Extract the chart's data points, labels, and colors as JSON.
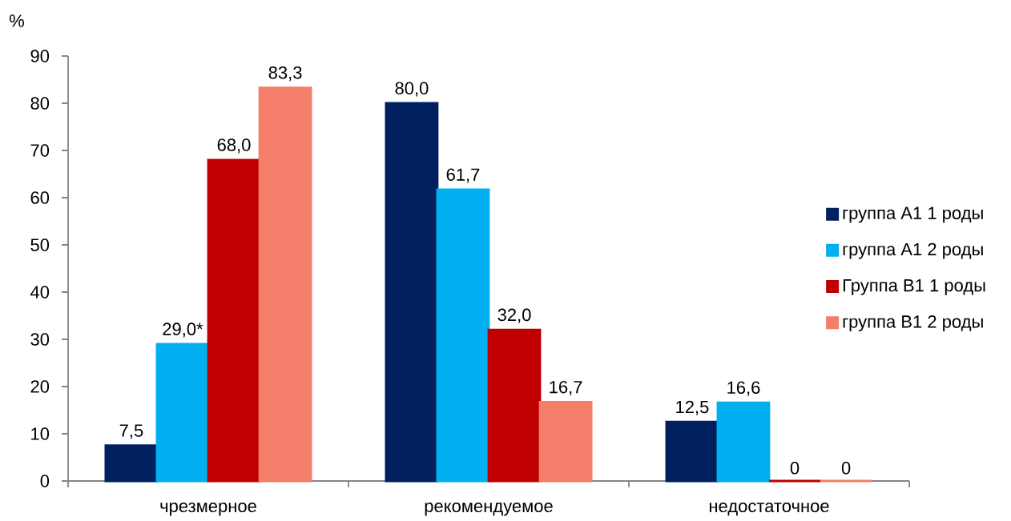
{
  "chart_data": {
    "type": "bar",
    "ylabel": "%",
    "categories": [
      "чрезмерное",
      "рекомендуемое",
      "недостаточное"
    ],
    "series": [
      {
        "name": "группа А1 1 роды",
        "color": "#002060",
        "values": [
          7.5,
          80.0,
          12.5
        ],
        "value_labels": [
          "7,5",
          "80,0",
          "12,5"
        ]
      },
      {
        "name": "группа А1 2 роды",
        "color": "#00b0f0",
        "values": [
          29.0,
          61.7,
          16.6
        ],
        "value_labels": [
          "29,0*",
          "61,7",
          "16,6"
        ]
      },
      {
        "name": "Группа В1 1 роды",
        "color": "#c00000",
        "values": [
          68.0,
          32.0,
          0
        ],
        "value_labels": [
          "68,0",
          "32,0",
          "0"
        ]
      },
      {
        "name": "группа В1 2 роды",
        "color": "#f47e6a",
        "values": [
          83.3,
          16.7,
          0
        ],
        "value_labels": [
          "83,3",
          "16,7",
          "0"
        ]
      }
    ],
    "ylim": [
      0,
      90
    ],
    "yticks": [
      0,
      10,
      20,
      30,
      40,
      50,
      60,
      70,
      80,
      90
    ],
    "legend": "right"
  }
}
